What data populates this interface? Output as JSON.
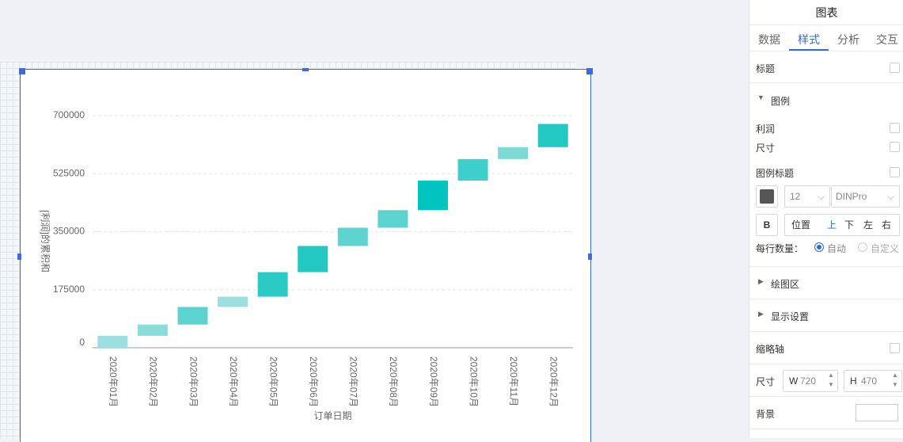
{
  "chart_data": {
    "type": "waterfall",
    "y_label": "[利润]的累积和",
    "x_label": "订单日期",
    "categories": [
      "2020年01月",
      "2020年02月",
      "2020年03月",
      "2020年04月",
      "2020年05月",
      "2020年06月",
      "2020年07月",
      "2020年08月",
      "2020年09月",
      "2020年10月",
      "2020年11月",
      "2020年12月"
    ],
    "values": [
      36000,
      34000,
      53000,
      31000,
      74000,
      79000,
      55000,
      53000,
      89000,
      65000,
      36000,
      70000
    ],
    "colors": [
      "#9be0de",
      "#8adcd9",
      "#5dd3cf",
      "#9be0de",
      "#2ccac5",
      "#23c8c3",
      "#5dd3cf",
      "#5dd3cf",
      "#00c4bf",
      "#3ecfcb",
      "#7ed9d6",
      "#23c8c3"
    ],
    "ylim": [
      0,
      700000
    ],
    "yticks": [
      0,
      175000,
      350000,
      525000,
      700000
    ],
    "grid": true
  },
  "panel": {
    "title": "图表",
    "tabs": [
      "数据",
      "样式",
      "分析",
      "交互"
    ],
    "title_option": "标题",
    "legend": {
      "heading": "图例",
      "items": [
        "利润",
        "尺寸"
      ],
      "title_option": "图例标题",
      "font_size": 12,
      "font": "DINPro",
      "bold": "B",
      "position_label": "位置",
      "positions": [
        "上",
        "下",
        "左",
        "右"
      ],
      "per_row_label": "每行数量：",
      "per_row_options": [
        "自动",
        "自定义"
      ]
    },
    "sections": [
      "绘图区",
      "显示设置"
    ],
    "thumbnail_axis": "缩略轴",
    "size": {
      "label": "尺寸",
      "w_label": "W",
      "w": 720,
      "h_label": "H",
      "h": 470
    },
    "background": "背景"
  }
}
